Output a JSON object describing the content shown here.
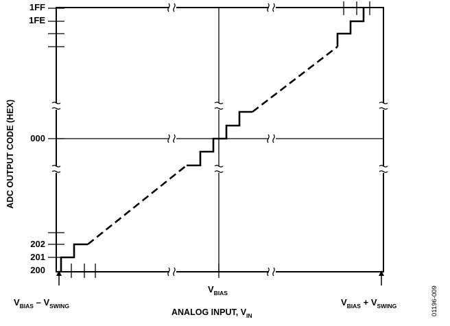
{
  "y_axis": {
    "title": "ADC OUTPUT CODE (HEX)",
    "tick_labels": [
      "1FF",
      "1FE",
      "000",
      "202",
      "201",
      "200"
    ]
  },
  "x_axis": {
    "title_main": "ANALOG INPUT, V",
    "title_sub": "IN",
    "center": {
      "v": "V",
      "sub": "BIAS"
    },
    "left": {
      "v1": "V",
      "sub1": "BIAS",
      "op": " – ",
      "v2": "V",
      "sub2": "SWING"
    },
    "right": {
      "v1": "V",
      "sub1": "BIAS",
      "op": " + ",
      "v2": "V",
      "sub2": "SWING"
    }
  },
  "figure_id": "01196-009",
  "colors": {
    "ink": "#000000",
    "background": "#ffffff"
  }
}
